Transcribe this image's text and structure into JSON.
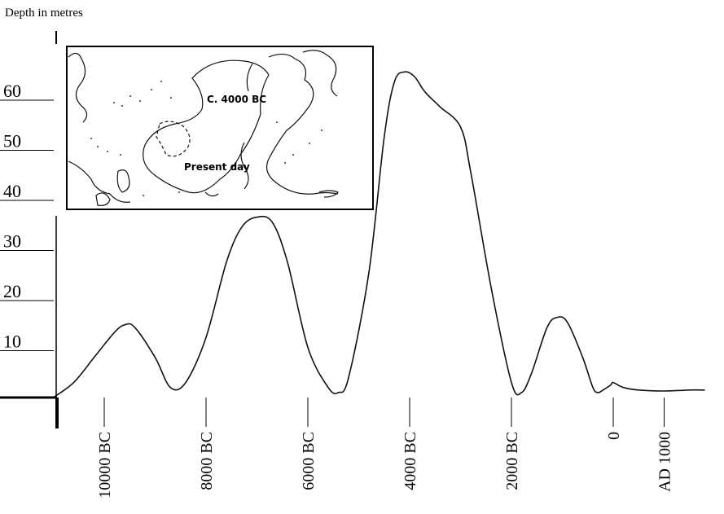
{
  "chart_data": {
    "type": "line",
    "title": "",
    "ylabel": "Depth in metres",
    "xlabel": "",
    "ylim": [
      0,
      70
    ],
    "yticks": [
      10,
      20,
      30,
      40,
      50,
      60
    ],
    "xticks": [
      {
        "label": "10000 BC",
        "year": -10000
      },
      {
        "label": "8000 BC",
        "year": -8000
      },
      {
        "label": "6000 BC",
        "year": -6000
      },
      {
        "label": "4000 BC",
        "year": -4000
      },
      {
        "label": "2000 BC",
        "year": -2000
      },
      {
        "label": "0",
        "year": 0
      },
      {
        "label": "AD 1000",
        "year": 1000
      }
    ],
    "series": [
      {
        "x": [
          -11000,
          -10600,
          -10200,
          -9800,
          -9600,
          -9400,
          -9000,
          -8700,
          -8400,
          -8000,
          -7600,
          -7300,
          -7000,
          -6700,
          -6400,
          -6000,
          -5600,
          -5400,
          -5200,
          -4800,
          -4500,
          -4300,
          -4100,
          -3900,
          -3700,
          -3400,
          -3000,
          -2800,
          -2400,
          -2000,
          -1800,
          -1600,
          -1300,
          -1100,
          -900,
          -600,
          -400,
          -300,
          -200,
          -50,
          0,
          200,
          500,
          1000,
          1500,
          1800
        ],
        "y": [
          0,
          3,
          8,
          13,
          14.5,
          14,
          8,
          2,
          3,
          12,
          27,
          34,
          36,
          35,
          27,
          10,
          2,
          1,
          4,
          25,
          52,
          63,
          65,
          64,
          61,
          58,
          54,
          45,
          22,
          3,
          1,
          5,
          14,
          16,
          15,
          8,
          2,
          1,
          1.5,
          2.5,
          3,
          2,
          1.5,
          1.3,
          1.5,
          1.5
        ]
      }
    ]
  },
  "inset": {
    "label_past": "C. 4000 BC",
    "label_present": "Present day"
  }
}
